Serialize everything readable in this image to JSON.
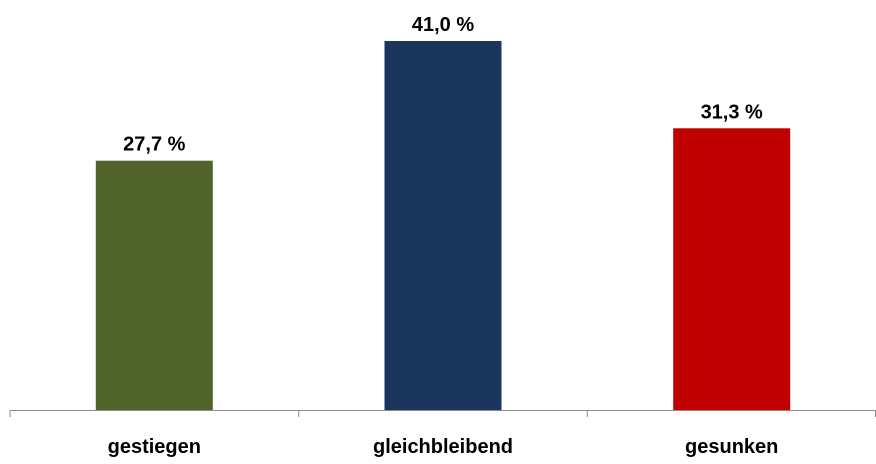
{
  "chart_data": {
    "type": "bar",
    "categories": [
      "gestiegen",
      "gleichbleibend",
      "gesunken"
    ],
    "values": [
      27.7,
      41.0,
      31.3
    ],
    "value_labels": [
      "27,7 %",
      "41,0 %",
      "31,3 %"
    ],
    "colors": [
      "#50632A",
      "#1A365C",
      "#C00000"
    ],
    "ylim": [
      0,
      41.0
    ],
    "grid": false,
    "legend": "none"
  }
}
